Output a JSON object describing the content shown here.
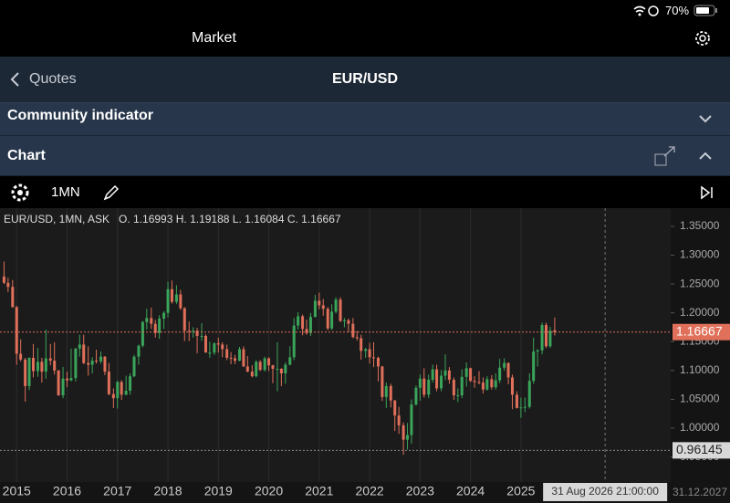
{
  "status": {
    "battery": "70%"
  },
  "header": {
    "title": "Market"
  },
  "nav": {
    "back": "Quotes",
    "title": "EUR/USD"
  },
  "sections": [
    "Community indicator",
    "Chart"
  ],
  "toolbar": {
    "period": "1MN"
  },
  "chart_data": {
    "type": "candlestick",
    "info": "EUR/USD, 1MN, ASK   O. 1.16993 H. 1.19188 L. 1.16084 C. 1.16667",
    "up_color": "#3aa55a",
    "down_color": "#e0705a",
    "grid": true,
    "xlim": [
      2014.67,
      2027.97
    ],
    "ylim": [
      0.9066,
      1.3816
    ],
    "xticks": [
      2015,
      2016,
      2017,
      2018,
      2019,
      2020,
      2021,
      2022,
      2023,
      2024,
      2025
    ],
    "x_end_label": "31.12.2027",
    "yticks": [
      {
        "value": 1.35,
        "label": "1.35000"
      },
      {
        "value": 1.3,
        "label": "1.30000"
      },
      {
        "value": 1.25,
        "label": "1.25000"
      },
      {
        "value": 1.2,
        "label": "1.20000"
      },
      {
        "value": 1.15,
        "label": "1.15000"
      },
      {
        "value": 1.1,
        "label": "1.10000"
      },
      {
        "value": 1.05,
        "label": "1.05000"
      },
      {
        "value": 1.0,
        "label": "1.00000"
      },
      {
        "value": 0.95,
        "label": "0.95000"
      }
    ],
    "last_price": 1.16667,
    "last_price_color": "#e0705a",
    "crosshair": {
      "x": 2026.67,
      "x_label": "31 Aug 2026 21:00:00",
      "y": 0.96145
    },
    "x": [
      2014.75,
      2014.83,
      2014.92,
      2015.0,
      2015.08,
      2015.17,
      2015.25,
      2015.33,
      2015.42,
      2015.5,
      2015.58,
      2015.67,
      2015.75,
      2015.83,
      2015.92,
      2016.0,
      2016.08,
      2016.17,
      2016.25,
      2016.33,
      2016.42,
      2016.5,
      2016.58,
      2016.67,
      2016.75,
      2016.83,
      2016.92,
      2017.0,
      2017.08,
      2017.17,
      2017.25,
      2017.33,
      2017.42,
      2017.5,
      2017.58,
      2017.67,
      2017.75,
      2017.83,
      2017.92,
      2018.0,
      2018.08,
      2018.17,
      2018.25,
      2018.33,
      2018.42,
      2018.5,
      2018.58,
      2018.67,
      2018.75,
      2018.83,
      2018.92,
      2019.0,
      2019.08,
      2019.17,
      2019.25,
      2019.33,
      2019.42,
      2019.5,
      2019.58,
      2019.67,
      2019.75,
      2019.83,
      2019.92,
      2020.0,
      2020.08,
      2020.17,
      2020.25,
      2020.33,
      2020.42,
      2020.5,
      2020.58,
      2020.67,
      2020.75,
      2020.83,
      2020.92,
      2021.0,
      2021.08,
      2021.17,
      2021.25,
      2021.33,
      2021.42,
      2021.5,
      2021.58,
      2021.67,
      2021.75,
      2021.83,
      2021.92,
      2022.0,
      2022.08,
      2022.17,
      2022.25,
      2022.33,
      2022.42,
      2022.5,
      2022.58,
      2022.67,
      2022.75,
      2022.83,
      2022.92,
      2023.0,
      2023.08,
      2023.17,
      2023.25,
      2023.33,
      2023.42,
      2023.5,
      2023.58,
      2023.67,
      2023.75,
      2023.83,
      2023.92,
      2024.0,
      2024.08,
      2024.17,
      2024.25,
      2024.33,
      2024.42,
      2024.5,
      2024.58,
      2024.67,
      2024.75,
      2024.83,
      2024.92,
      2025.0,
      2025.08,
      2025.17,
      2025.25,
      2025.33,
      2025.42,
      2025.5,
      2025.58,
      2025.67
    ],
    "ohlc": [
      [
        1.263,
        1.289,
        1.25,
        1.252
      ],
      [
        1.252,
        1.261,
        1.236,
        1.245
      ],
      [
        1.245,
        1.257,
        1.209,
        1.21
      ],
      [
        1.21,
        1.212,
        1.11,
        1.129
      ],
      [
        1.129,
        1.154,
        1.116,
        1.119
      ],
      [
        1.119,
        1.122,
        1.046,
        1.073
      ],
      [
        1.073,
        1.123,
        1.066,
        1.122
      ],
      [
        1.122,
        1.146,
        1.088,
        1.099
      ],
      [
        1.099,
        1.139,
        1.089,
        1.115
      ],
      [
        1.115,
        1.122,
        1.079,
        1.098
      ],
      [
        1.098,
        1.171,
        1.086,
        1.121
      ],
      [
        1.121,
        1.146,
        1.109,
        1.117
      ],
      [
        1.117,
        1.149,
        1.093,
        1.1
      ],
      [
        1.1,
        1.101,
        1.056,
        1.057
      ],
      [
        1.057,
        1.106,
        1.052,
        1.086
      ],
      [
        1.086,
        1.098,
        1.071,
        1.083
      ],
      [
        1.083,
        1.138,
        1.081,
        1.087
      ],
      [
        1.087,
        1.139,
        1.081,
        1.138
      ],
      [
        1.138,
        1.162,
        1.124,
        1.145
      ],
      [
        1.145,
        1.162,
        1.111,
        1.113
      ],
      [
        1.113,
        1.142,
        1.091,
        1.11
      ],
      [
        1.11,
        1.123,
        1.095,
        1.117
      ],
      [
        1.117,
        1.136,
        1.112,
        1.116
      ],
      [
        1.116,
        1.133,
        1.112,
        1.124
      ],
      [
        1.124,
        1.125,
        1.092,
        1.098
      ],
      [
        1.098,
        1.113,
        1.057,
        1.059
      ],
      [
        1.059,
        1.069,
        1.035,
        1.052
      ],
      [
        1.052,
        1.082,
        1.034,
        1.08
      ],
      [
        1.08,
        1.083,
        1.049,
        1.058
      ],
      [
        1.058,
        1.091,
        1.057,
        1.065
      ],
      [
        1.065,
        1.095,
        1.058,
        1.09
      ],
      [
        1.09,
        1.127,
        1.088,
        1.124
      ],
      [
        1.124,
        1.145,
        1.11,
        1.143
      ],
      [
        1.143,
        1.186,
        1.14,
        1.184
      ],
      [
        1.184,
        1.207,
        1.171,
        1.191
      ],
      [
        1.191,
        1.209,
        1.172,
        1.181
      ],
      [
        1.181,
        1.188,
        1.157,
        1.165
      ],
      [
        1.165,
        1.196,
        1.155,
        1.19
      ],
      [
        1.19,
        1.203,
        1.172,
        1.2
      ],
      [
        1.2,
        1.254,
        1.192,
        1.241
      ],
      [
        1.241,
        1.256,
        1.216,
        1.219
      ],
      [
        1.219,
        1.248,
        1.215,
        1.232
      ],
      [
        1.232,
        1.24,
        1.205,
        1.208
      ],
      [
        1.208,
        1.21,
        1.151,
        1.169
      ],
      [
        1.169,
        1.185,
        1.151,
        1.168
      ],
      [
        1.168,
        1.175,
        1.157,
        1.169
      ],
      [
        1.169,
        1.174,
        1.13,
        1.16
      ],
      [
        1.16,
        1.182,
        1.151,
        1.16
      ],
      [
        1.16,
        1.163,
        1.132,
        1.131
      ],
      [
        1.131,
        1.15,
        1.122,
        1.131
      ],
      [
        1.131,
        1.149,
        1.127,
        1.147
      ],
      [
        1.147,
        1.157,
        1.131,
        1.145
      ],
      [
        1.145,
        1.149,
        1.123,
        1.137
      ],
      [
        1.137,
        1.145,
        1.118,
        1.122
      ],
      [
        1.122,
        1.132,
        1.111,
        1.121
      ],
      [
        1.121,
        1.127,
        1.111,
        1.117
      ],
      [
        1.117,
        1.141,
        1.116,
        1.137
      ],
      [
        1.137,
        1.142,
        1.106,
        1.107
      ],
      [
        1.107,
        1.125,
        1.097,
        1.098
      ],
      [
        1.098,
        1.109,
        1.088,
        1.09
      ],
      [
        1.09,
        1.118,
        1.088,
        1.115
      ],
      [
        1.115,
        1.118,
        1.099,
        1.101
      ],
      [
        1.101,
        1.124,
        1.098,
        1.121
      ],
      [
        1.121,
        1.123,
        1.099,
        1.109
      ],
      [
        1.109,
        1.11,
        1.078,
        1.103
      ],
      [
        1.103,
        1.149,
        1.064,
        1.103
      ],
      [
        1.103,
        1.104,
        1.073,
        1.095
      ],
      [
        1.095,
        1.114,
        1.077,
        1.11
      ],
      [
        1.11,
        1.142,
        1.109,
        1.123
      ],
      [
        1.123,
        1.191,
        1.118,
        1.178
      ],
      [
        1.178,
        1.201,
        1.171,
        1.194
      ],
      [
        1.194,
        1.197,
        1.161,
        1.172
      ],
      [
        1.172,
        1.188,
        1.162,
        1.165
      ],
      [
        1.165,
        1.2,
        1.16,
        1.193
      ],
      [
        1.193,
        1.231,
        1.192,
        1.221
      ],
      [
        1.221,
        1.235,
        1.206,
        1.213
      ],
      [
        1.213,
        1.224,
        1.195,
        1.207
      ],
      [
        1.207,
        1.21,
        1.17,
        1.173
      ],
      [
        1.173,
        1.215,
        1.17,
        1.202
      ],
      [
        1.202,
        1.227,
        1.199,
        1.223
      ],
      [
        1.223,
        1.227,
        1.184,
        1.186
      ],
      [
        1.186,
        1.191,
        1.175,
        1.187
      ],
      [
        1.187,
        1.19,
        1.166,
        1.181
      ],
      [
        1.181,
        1.191,
        1.156,
        1.158
      ],
      [
        1.158,
        1.169,
        1.152,
        1.156
      ],
      [
        1.156,
        1.162,
        1.119,
        1.134
      ],
      [
        1.134,
        1.139,
        1.122,
        1.137
      ],
      [
        1.137,
        1.148,
        1.112,
        1.123
      ],
      [
        1.123,
        1.149,
        1.106,
        1.122
      ],
      [
        1.122,
        1.124,
        1.081,
        1.107
      ],
      [
        1.107,
        1.108,
        1.047,
        1.054
      ],
      [
        1.054,
        1.079,
        1.035,
        1.073
      ],
      [
        1.073,
        1.077,
        1.036,
        1.048
      ],
      [
        1.048,
        1.049,
        0.995,
        1.022
      ],
      [
        1.022,
        1.037,
        0.99,
        1.005
      ],
      [
        1.005,
        1.01,
        0.954,
        0.98
      ],
      [
        0.98,
        1.009,
        0.963,
        0.988
      ],
      [
        0.988,
        1.05,
        0.973,
        1.041
      ],
      [
        1.041,
        1.074,
        1.039,
        1.07
      ],
      [
        1.07,
        1.093,
        1.048,
        1.086
      ],
      [
        1.086,
        1.104,
        1.053,
        1.058
      ],
      [
        1.058,
        1.093,
        1.052,
        1.084
      ],
      [
        1.084,
        1.11,
        1.079,
        1.102
      ],
      [
        1.102,
        1.11,
        1.064,
        1.069
      ],
      [
        1.069,
        1.101,
        1.064,
        1.091
      ],
      [
        1.091,
        1.128,
        1.083,
        1.1
      ],
      [
        1.1,
        1.106,
        1.077,
        1.084
      ],
      [
        1.084,
        1.088,
        1.049,
        1.057
      ],
      [
        1.057,
        1.069,
        1.045,
        1.057
      ],
      [
        1.057,
        1.102,
        1.052,
        1.089
      ],
      [
        1.089,
        1.114,
        1.072,
        1.104
      ],
      [
        1.104,
        1.105,
        1.08,
        1.082
      ],
      [
        1.082,
        1.09,
        1.07,
        1.08
      ],
      [
        1.08,
        1.099,
        1.076,
        1.079
      ],
      [
        1.079,
        1.088,
        1.06,
        1.067
      ],
      [
        1.067,
        1.09,
        1.065,
        1.085
      ],
      [
        1.085,
        1.092,
        1.067,
        1.071
      ],
      [
        1.071,
        1.095,
        1.067,
        1.083
      ],
      [
        1.083,
        1.12,
        1.078,
        1.105
      ],
      [
        1.105,
        1.121,
        1.1,
        1.113
      ],
      [
        1.113,
        1.114,
        1.076,
        1.088
      ],
      [
        1.088,
        1.093,
        1.033,
        1.058
      ],
      [
        1.058,
        1.064,
        1.034,
        1.035
      ],
      [
        1.035,
        1.053,
        1.018,
        1.036
      ],
      [
        1.036,
        1.053,
        1.028,
        1.037
      ],
      [
        1.037,
        1.095,
        1.034,
        1.082
      ],
      [
        1.082,
        1.157,
        1.077,
        1.133
      ],
      [
        1.133,
        1.137,
        1.107,
        1.135
      ],
      [
        1.135,
        1.183,
        1.128,
        1.179
      ],
      [
        1.179,
        1.183,
        1.139,
        1.142
      ],
      [
        1.142,
        1.176,
        1.139,
        1.169
      ],
      [
        1.16993,
        1.19188,
        1.16084,
        1.16667
      ]
    ]
  }
}
